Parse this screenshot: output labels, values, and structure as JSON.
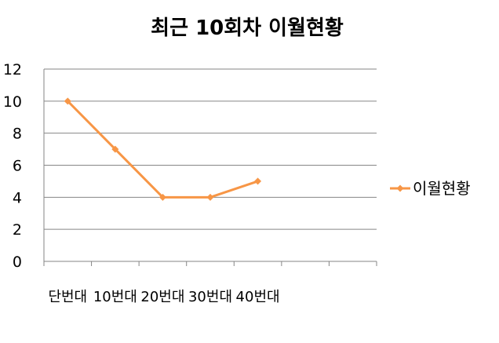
{
  "chart_data": {
    "type": "line",
    "title": "최근 10회차 이월현황",
    "categories": [
      "단번대",
      "10번대",
      "20번대",
      "30번대",
      "40번대",
      "",
      ""
    ],
    "series": [
      {
        "name": "이월현황",
        "values": [
          10,
          7,
          4,
          4,
          5,
          null,
          null
        ],
        "color": "#F79646"
      }
    ],
    "ylim": [
      0,
      12
    ],
    "yticks": [
      0,
      2,
      4,
      6,
      8,
      10,
      12
    ],
    "grid": true,
    "legend": "right"
  }
}
